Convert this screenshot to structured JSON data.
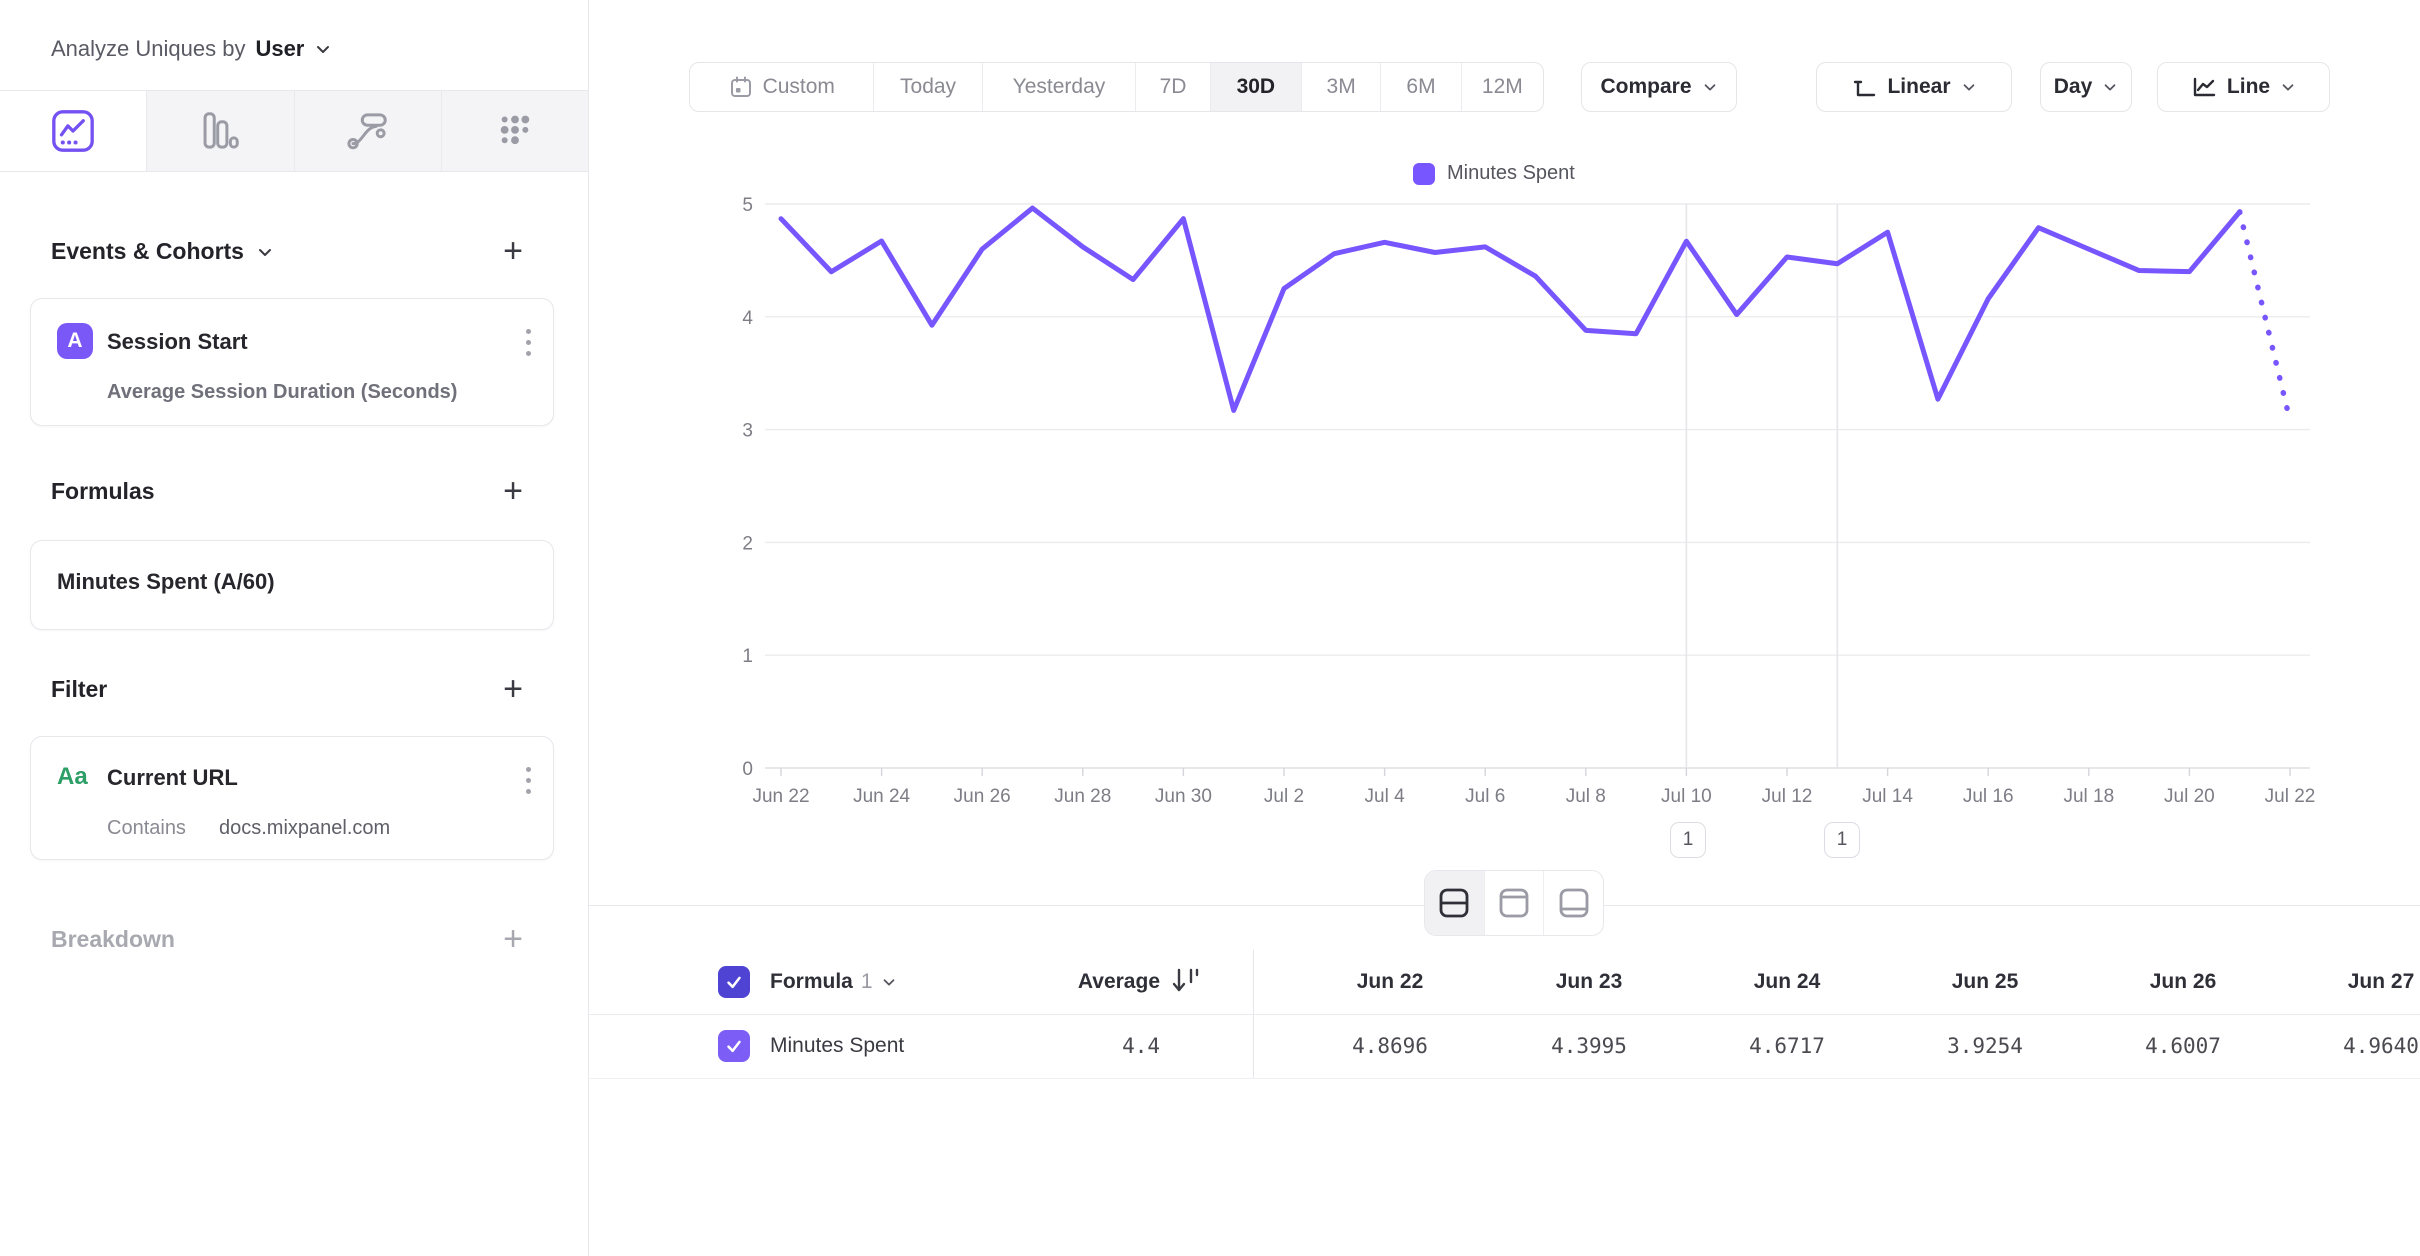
{
  "sidebar": {
    "analyze_by_label": "Analyze Uniques by",
    "analyze_by_value": "User",
    "tabs": [
      {
        "icon": "insights-line-chart-icon",
        "active": true
      },
      {
        "icon": "bar-chart-icon",
        "active": false
      },
      {
        "icon": "flows-icon",
        "active": false
      },
      {
        "icon": "grid-dots-icon",
        "active": false
      }
    ],
    "events_section_title": "Events & Cohorts",
    "event_card": {
      "badge": "A",
      "title": "Session Start",
      "metric": "Average Session Duration (Seconds)"
    },
    "formulas_section_title": "Formulas",
    "formula_card_title": "Minutes Spent (A/60)",
    "filter_section_title": "Filter",
    "filter_card": {
      "type_icon": "Aa",
      "title": "Current URL",
      "operator": "Contains",
      "value": "docs.mixpanel.com"
    },
    "breakdown_section_title": "Breakdown"
  },
  "toolbar": {
    "date_ranges": [
      "Custom",
      "Today",
      "Yesterday",
      "7D",
      "30D",
      "3M",
      "6M",
      "12M"
    ],
    "active_range": "30D",
    "compare_label": "Compare",
    "scale_label": "Linear",
    "granularity_label": "Day",
    "chart_type_label": "Line"
  },
  "chart_data": {
    "type": "line",
    "title": "",
    "x": [
      "Jun 22",
      "Jun 23",
      "Jun 24",
      "Jun 25",
      "Jun 26",
      "Jun 27",
      "Jun 28",
      "Jun 29",
      "Jun 30",
      "Jul 1",
      "Jul 2",
      "Jul 3",
      "Jul 4",
      "Jul 5",
      "Jul 6",
      "Jul 7",
      "Jul 8",
      "Jul 9",
      "Jul 10",
      "Jul 11",
      "Jul 12",
      "Jul 13",
      "Jul 14",
      "Jul 15",
      "Jul 16",
      "Jul 17",
      "Jul 18",
      "Jul 19",
      "Jul 20",
      "Jul 21",
      "Jul 22"
    ],
    "x_tick_every": 2,
    "yticks": [
      0,
      1,
      2,
      3,
      4,
      5
    ],
    "ylim": [
      0,
      5
    ],
    "grid": "horizontal",
    "legend_position": "top-center",
    "series": [
      {
        "name": "Minutes Spent",
        "color": "#7856ff",
        "values": [
          4.8696,
          4.3995,
          4.6717,
          3.9254,
          4.6007,
          4.964,
          4.62,
          4.33,
          4.87,
          3.17,
          4.25,
          4.56,
          4.66,
          4.57,
          4.62,
          4.36,
          3.88,
          3.85,
          4.67,
          4.02,
          4.53,
          4.47,
          4.75,
          3.27,
          4.16,
          4.79,
          4.6,
          4.41,
          4.4,
          4.93,
          3.08
        ],
        "incomplete_last_segment_dotted": true
      }
    ],
    "annotation_lines": [
      "Jul 10",
      "Jul 13"
    ]
  },
  "annotations": [
    {
      "label": "1",
      "at": "Jul 10"
    },
    {
      "label": "1",
      "at": "Jul 13"
    }
  ],
  "table": {
    "group_label": "Formula",
    "group_number": "1",
    "average_label": "Average",
    "columns": [
      "Jun 22",
      "Jun 23",
      "Jun 24",
      "Jun 25",
      "Jun 26",
      "Jun 27"
    ],
    "rows": [
      {
        "label": "Minutes Spent",
        "average": "4.4",
        "values": [
          "4.8696",
          "4.3995",
          "4.6717",
          "3.9254",
          "4.6007",
          "4.9640"
        ]
      }
    ]
  },
  "colors": {
    "accent": "#7856ff",
    "header_checkbox": "#4f43d4",
    "row_checkbox": "#7c5ef7",
    "event_badge": "#7a58f7",
    "filter_type_icon": "#2e9e67"
  }
}
